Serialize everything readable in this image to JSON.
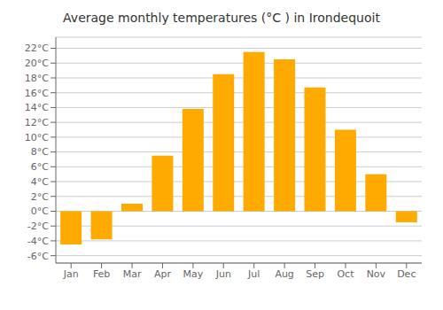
{
  "chart_data": {
    "type": "bar",
    "title": "Average monthly temperatures (°C ) in Irondequoit",
    "categories": [
      "Jan",
      "Feb",
      "Mar",
      "Apr",
      "May",
      "Jun",
      "Jul",
      "Aug",
      "Sep",
      "Oct",
      "Nov",
      "Dec"
    ],
    "values": [
      -4.5,
      -3.8,
      1.0,
      7.5,
      13.8,
      18.5,
      21.5,
      20.5,
      16.7,
      11.0,
      5.0,
      -1.5
    ],
    "color": "#FFAA00",
    "ylim": [
      -7,
      23.5
    ],
    "yticks": [
      {
        "value": -6,
        "label": "-6°C"
      },
      {
        "value": -4,
        "label": "-4°C"
      },
      {
        "value": -2,
        "label": "-2°C"
      },
      {
        "value": 0,
        "label": "0°C"
      },
      {
        "value": 2,
        "label": "2°C"
      },
      {
        "value": 4,
        "label": "4°C"
      },
      {
        "value": 6,
        "label": "6°C"
      },
      {
        "value": 8,
        "label": "8°C"
      },
      {
        "value": 10,
        "label": "10°C"
      },
      {
        "value": 12,
        "label": "12°C"
      },
      {
        "value": 14,
        "label": "14°C"
      },
      {
        "value": 16,
        "label": "16°C"
      },
      {
        "value": 18,
        "label": "18°C"
      },
      {
        "value": 20,
        "label": "20°C"
      },
      {
        "value": 22,
        "label": "22°C"
      }
    ],
    "grid": true
  }
}
